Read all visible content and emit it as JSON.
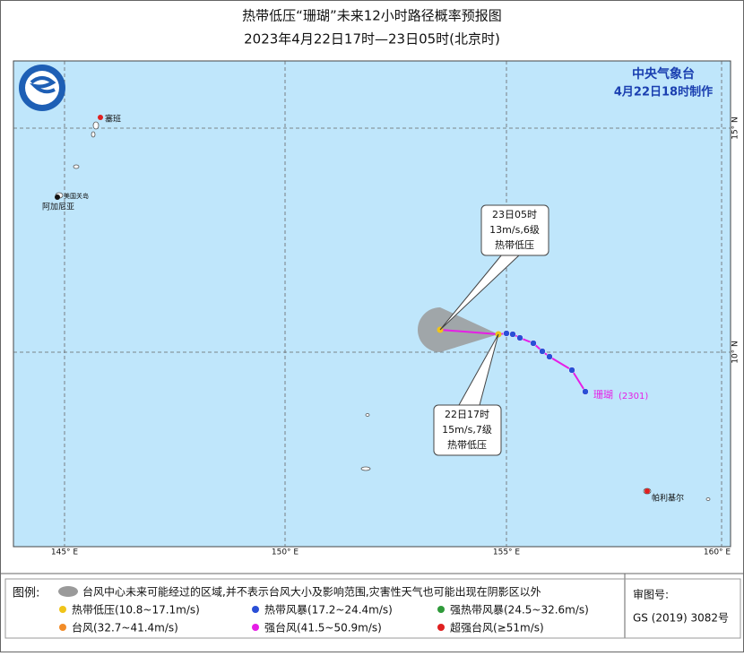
{
  "header": {
    "title": "热带低压“珊瑚”未来12小时路径概率预报图",
    "subtitle": "2023年4月22日17时—23日05时(北京时)"
  },
  "agency": {
    "name": "中央气象台",
    "made": "4月22日18时制作"
  },
  "map": {
    "lon_labels": [
      "145° E",
      "150° E",
      "155° E",
      "160° E"
    ],
    "lat_labels": [
      "15° N",
      "10° N"
    ],
    "places": [
      "塞班",
      "美国关岛",
      "阿加尼亚",
      "帕利基尔"
    ],
    "storm_label": "珊瑚",
    "storm_id": "(2301)"
  },
  "callouts": [
    {
      "lines": [
        "23日05时",
        "13m/s,6级",
        "热带低压"
      ]
    },
    {
      "lines": [
        "22日17时",
        "15m/s,7级",
        "热带低压"
      ]
    }
  ],
  "legend": {
    "title": "图例:",
    "cone": "台风中心未来可能经过的区域,并不表示台风大小及影响范围,灾害性天气也可能出现在阴影区以外",
    "items": [
      {
        "label": "热带低压(10.8~17.1m/s)",
        "color": "#f0c419"
      },
      {
        "label": "热带风暴(17.2~24.4m/s)",
        "color": "#2a4fd6"
      },
      {
        "label": "强热带风暴(24.5~32.6m/s)",
        "color": "#2f9a3a"
      },
      {
        "label": "台风(32.7~41.4m/s)",
        "color": "#f28c28"
      },
      {
        "label": "强台风(41.5~50.9m/s)",
        "color": "#e61ee6"
      },
      {
        "label": "超强台风(≥51m/s)",
        "color": "#e02020"
      }
    ]
  },
  "review": {
    "label": "审图号:",
    "number": "GS (2019) 3082号"
  }
}
